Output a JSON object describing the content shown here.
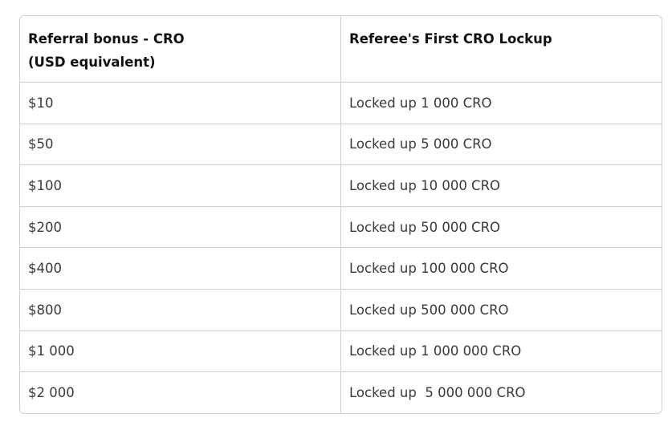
{
  "table": {
    "headers": [
      [
        "Referral bonus - CRO",
        "(USD equivalent)"
      ],
      "Referee's First CRO Lockup"
    ],
    "rows": [
      [
        "$10",
        "Locked up 1 000 CRO"
      ],
      [
        "$50",
        "Locked up 5 000 CRO"
      ],
      [
        "$100",
        "Locked up 10 000 CRO"
      ],
      [
        "$200",
        "Locked up 50 000 CRO"
      ],
      [
        "$400",
        "Locked up 100 000 CRO"
      ],
      [
        "$800",
        "Locked up 500 000 CRO"
      ],
      [
        "$1 000",
        "Locked up 1 000 000 CRO"
      ],
      [
        "$2 000",
        "Locked up  5 000 000 CRO"
      ]
    ]
  }
}
